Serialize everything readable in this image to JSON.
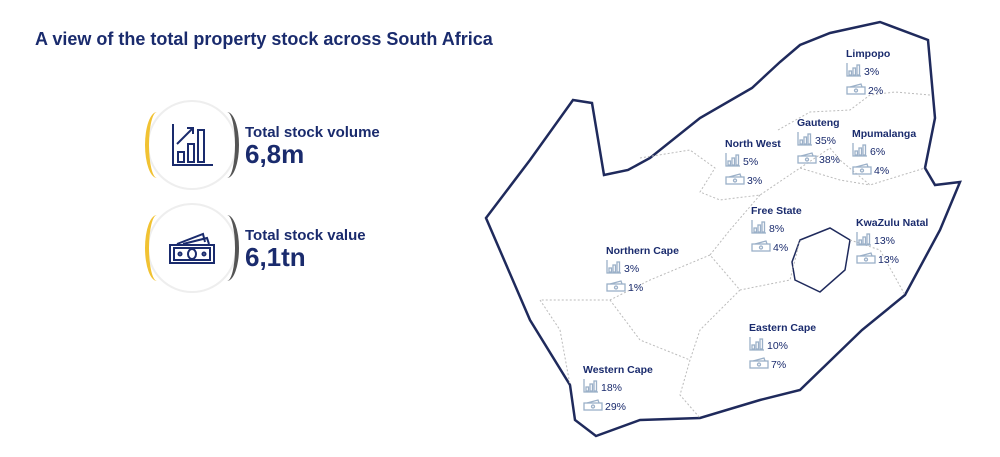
{
  "title": "A view of the total property stock across South Africa",
  "stats": [
    {
      "label": "Total stock volume",
      "value": "6,8m",
      "icon": "bar-chart-growth-icon"
    },
    {
      "label": "Total stock value",
      "value": "6,1tn",
      "icon": "banknotes-icon"
    }
  ],
  "colors": {
    "text": "#1a2b6d",
    "accent_yellow": "#f1c232",
    "border": "#1f2a5c"
  },
  "provinces": [
    {
      "name": "Limpopo",
      "volume": "3%",
      "value": "2%"
    },
    {
      "name": "Gauteng",
      "volume": "35%",
      "value": "38%"
    },
    {
      "name": "North West",
      "volume": "5%",
      "value": "3%"
    },
    {
      "name": "Mpumalanga",
      "volume": "6%",
      "value": "4%"
    },
    {
      "name": "Free State",
      "volume": "8%",
      "value": "4%"
    },
    {
      "name": "KwaZulu Natal",
      "volume": "13%",
      "value": "13%"
    },
    {
      "name": "Northern Cape",
      "volume": "3%",
      "value": "1%"
    },
    {
      "name": "Eastern Cape",
      "volume": "10%",
      "value": "7%"
    },
    {
      "name": "Western Cape",
      "volume": "18%",
      "value": "29%"
    }
  ]
}
